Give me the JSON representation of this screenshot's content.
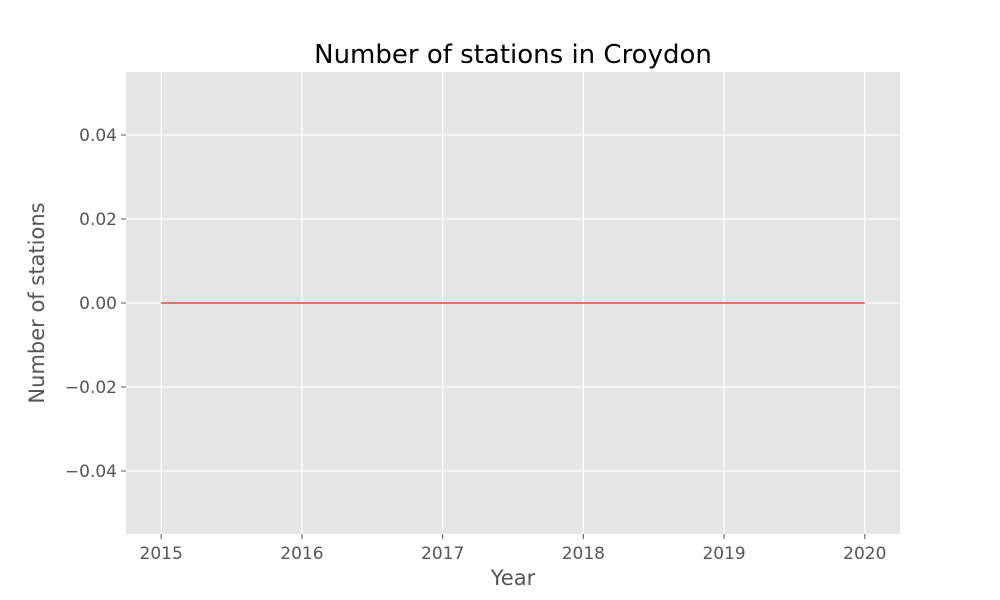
{
  "chart_data": {
    "type": "line",
    "title": "Number of stations in Croydon",
    "xlabel": "Year",
    "ylabel": "Number of stations",
    "x": [
      2015,
      2016,
      2017,
      2018,
      2019,
      2020
    ],
    "series": [
      {
        "values": [
          0,
          0,
          0,
          0,
          0,
          0
        ],
        "color": "#e24a33"
      }
    ],
    "xlim": [
      2014.75,
      2020.25
    ],
    "ylim": [
      -0.055,
      0.055
    ],
    "xticks": [
      2015,
      2016,
      2017,
      2018,
      2019,
      2020
    ],
    "xtick_labels": [
      "2015",
      "2016",
      "2017",
      "2018",
      "2019",
      "2020"
    ],
    "yticks": [
      -0.04,
      -0.02,
      0.0,
      0.02,
      0.04
    ],
    "ytick_labels": [
      "−0.04",
      "−0.02",
      "0.00",
      "0.02",
      "0.04"
    ],
    "grid": true,
    "legend": "none",
    "colors": {
      "plot_background": "#e5e5e5",
      "grid": "#ffffff",
      "tick_label": "#555555",
      "title": "#000000"
    }
  }
}
